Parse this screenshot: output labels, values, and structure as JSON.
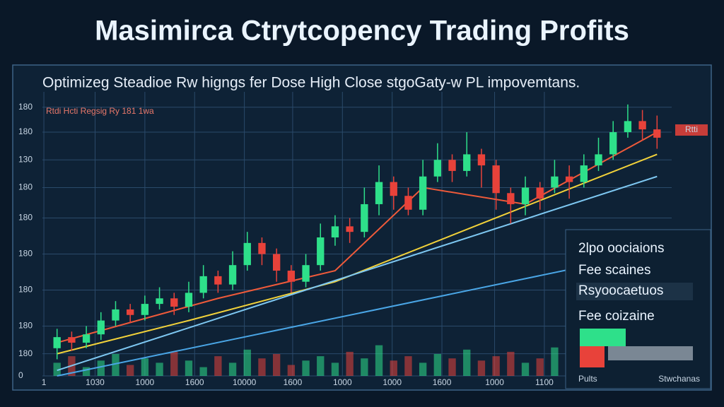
{
  "chart_data": {
    "type": "candlestick",
    "title": "Masimirca Ctrytcopency Trading Profits",
    "subtitle": "Optimizeg Steadioe Rw higngs fer Dose High Close stgoGaty-w PL impovemtans.",
    "legend_caption": "Rtdi Hcti Regsig Ry 181 1wa",
    "price_tag": "Rtti",
    "panel_items": [
      "2lpo oociaions",
      "Fee scaines",
      "Rsyoocaetuos",
      "Fee coizaine"
    ],
    "panel_footer": [
      "Pults",
      "Stwchanas"
    ],
    "up_color": "#2ee08a",
    "down_color": "#e8423a",
    "grid": true,
    "xlim": [
      0,
      43
    ],
    "ylim": [
      0,
      100
    ],
    "y2lim": [
      0,
      100
    ],
    "xticks": [
      {
        "value": 0.1,
        "label": "1"
      },
      {
        "value": 3.6,
        "label": "1030"
      },
      {
        "value": 7,
        "label": "1000"
      },
      {
        "value": 10.4,
        "label": "1600"
      },
      {
        "value": 13.8,
        "label": "10000"
      },
      {
        "value": 17.1,
        "label": "1600"
      },
      {
        "value": 20.5,
        "label": "1000"
      },
      {
        "value": 23.9,
        "label": "1000"
      },
      {
        "value": 27.3,
        "label": "1600"
      },
      {
        "value": 30.9,
        "label": "1000"
      },
      {
        "value": 34.3,
        "label": "1100"
      }
    ],
    "yticks": [
      {
        "value": 97,
        "label": "180"
      },
      {
        "value": 88,
        "label": "180"
      },
      {
        "value": 78,
        "label": "130"
      },
      {
        "value": 68,
        "label": "180"
      },
      {
        "value": 57,
        "label": "180"
      },
      {
        "value": 44,
        "label": "180"
      },
      {
        "value": 31,
        "label": "180"
      },
      {
        "value": 18,
        "label": "180"
      },
      {
        "value": 8,
        "label": "180"
      },
      0
    ],
    "x": [
      1,
      2,
      3,
      4,
      5,
      6,
      7,
      8,
      9,
      10,
      11,
      12,
      13,
      14,
      15,
      16,
      17,
      18,
      19,
      20,
      21,
      22,
      23,
      24,
      25,
      26,
      27,
      28,
      29,
      30,
      31,
      32,
      33,
      34,
      35,
      36,
      37,
      38,
      39,
      40,
      41,
      42
    ],
    "open": [
      10,
      14,
      12,
      15,
      20,
      24,
      22,
      26,
      28,
      25,
      30,
      36,
      33,
      40,
      48,
      44,
      38,
      34,
      40,
      50,
      54,
      52,
      62,
      70,
      65,
      60,
      72,
      78,
      74,
      80,
      76,
      66,
      62,
      68,
      68,
      72,
      70,
      76,
      80,
      88,
      92,
      89
    ],
    "close": [
      14,
      12,
      15,
      20,
      24,
      22,
      26,
      28,
      25,
      30,
      36,
      33,
      40,
      48,
      44,
      38,
      34,
      40,
      50,
      54,
      52,
      62,
      70,
      65,
      60,
      72,
      78,
      74,
      80,
      76,
      66,
      62,
      68,
      64,
      72,
      70,
      76,
      80,
      88,
      92,
      89,
      86
    ],
    "high": [
      17,
      16,
      18,
      23,
      27,
      26,
      29,
      32,
      30,
      34,
      40,
      38,
      45,
      52,
      50,
      46,
      40,
      44,
      55,
      58,
      57,
      68,
      76,
      72,
      68,
      78,
      84,
      80,
      88,
      82,
      78,
      68,
      72,
      70,
      78,
      76,
      80,
      86,
      92,
      98,
      96,
      94
    ],
    "low": [
      6,
      9,
      10,
      13,
      18,
      19,
      20,
      24,
      22,
      23,
      28,
      30,
      31,
      38,
      40,
      34,
      30,
      32,
      38,
      47,
      48,
      50,
      58,
      60,
      58,
      58,
      70,
      70,
      72,
      68,
      60,
      55,
      58,
      60,
      66,
      64,
      68,
      74,
      78,
      86,
      85,
      82
    ],
    "volume": [
      30,
      45,
      20,
      35,
      50,
      25,
      40,
      30,
      55,
      35,
      20,
      45,
      30,
      60,
      40,
      50,
      25,
      35,
      45,
      30,
      55,
      40,
      70,
      35,
      45,
      30,
      50,
      40,
      60,
      35,
      45,
      55,
      30,
      40,
      65,
      50,
      45,
      35,
      55,
      40,
      60,
      50
    ],
    "series": [
      {
        "name": "Fee scaines",
        "color": "#f2d23a",
        "x": [
          1,
          10,
          20,
          30,
          42
        ],
        "values": [
          8,
          20,
          34,
          55,
          80
        ]
      },
      {
        "name": "Fee coizaine",
        "color": "#ef5a3a",
        "x": [
          1,
          12,
          20,
          26,
          33,
          42
        ],
        "values": [
          12,
          28,
          38,
          68,
          62,
          88
        ]
      },
      {
        "name": "2lpo oociaions",
        "color": "#7ec8f2",
        "x": [
          1,
          42
        ],
        "values": [
          2,
          72
        ]
      },
      {
        "name": "Rsyoocaetuos",
        "color": "#4aa6e6",
        "x": [
          1,
          42
        ],
        "values": [
          0,
          45
        ]
      }
    ]
  }
}
